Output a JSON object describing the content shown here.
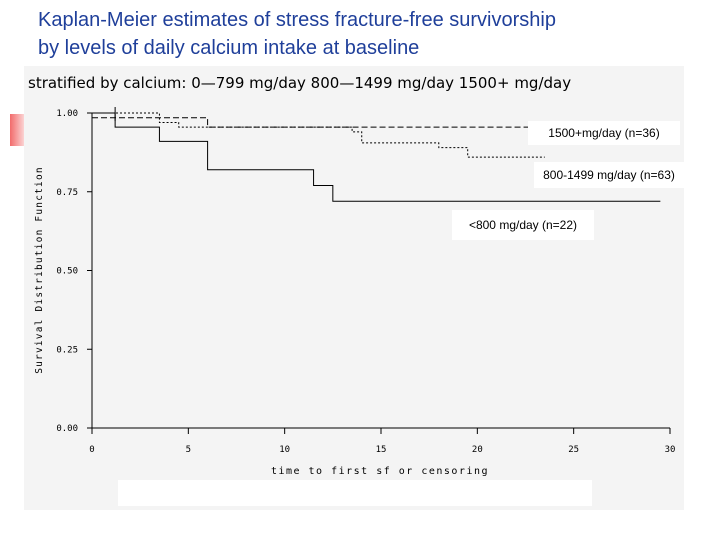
{
  "slide": {
    "title_line1": "Kaplan-Meier estimates of stress fracture-free survivorship",
    "title_line2": "by levels of daily calcium intake at baseline"
  },
  "colors": {
    "title": "#1f3f9a",
    "panel": "#f4f4f4",
    "axes": "#000000",
    "accent": "#f26b6b"
  },
  "chart_data": {
    "type": "line",
    "title": "stratified by calcium: 0—799 mg/day  800—1499 mg/day   1500+  mg/day",
    "xlabel": "time to first sf or censoring",
    "ylabel": "Survival Distribution Function",
    "xlim": [
      0,
      30
    ],
    "ylim": [
      0,
      1
    ],
    "xticks": [
      0,
      5,
      10,
      15,
      20,
      25,
      30
    ],
    "yticks": [
      0.0,
      0.25,
      0.5,
      0.75,
      1.0
    ],
    "ytick_labels": [
      "0.00",
      "0.25",
      "0.50",
      "0.75",
      "1.00"
    ],
    "grid": false,
    "step": true,
    "series": [
      {
        "name": "<800 mg/day (n=22)",
        "style": "solid",
        "x": [
          0,
          1.2,
          3.5,
          6.0,
          11.5,
          12.5,
          29.5
        ],
        "y": [
          1.0,
          0.955,
          0.91,
          0.82,
          0.77,
          0.72,
          0.72
        ]
      },
      {
        "name": "800-1499 mg/day (n=63)",
        "style": "dotted",
        "x": [
          0,
          3.5,
          4.5,
          13.5,
          14.0,
          18.0,
          19.5,
          23.0,
          23.5
        ],
        "y": [
          1.0,
          0.97,
          0.955,
          0.94,
          0.905,
          0.89,
          0.86,
          0.86,
          0.86
        ]
      },
      {
        "name": "1500+mg/day (n=36)",
        "style": "dashed",
        "x": [
          0,
          6.0,
          23.0
        ],
        "y": [
          0.985,
          0.955,
          0.955
        ]
      }
    ],
    "annotations": [
      "1500+mg/day (n=36)",
      "800-1499 mg/day (n=63)",
      "<800 mg/day (n=22)"
    ]
  }
}
